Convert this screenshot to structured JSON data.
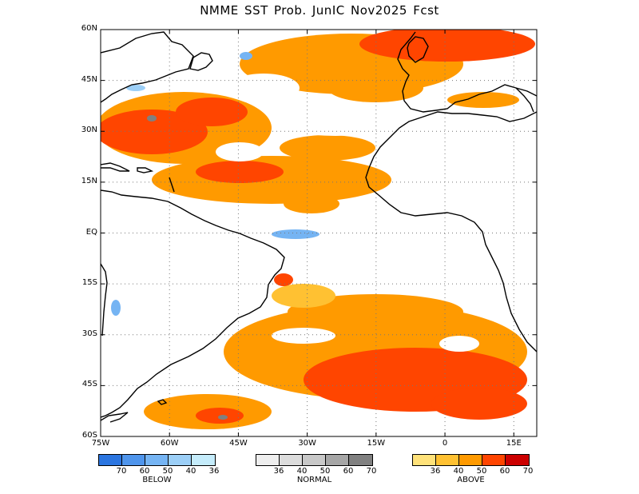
{
  "title": "NMME  SST  Prob.  JunIC    Nov2025  Fcst",
  "map": {
    "lat_labels": [
      "60N",
      "45N",
      "30N",
      "15N",
      "EQ",
      "15S",
      "30S",
      "45S",
      "60S"
    ],
    "lon_labels": [
      "75W",
      "60W",
      "45W",
      "30W",
      "15W",
      "0",
      "15E"
    ],
    "lat_range": [
      -60,
      60
    ],
    "lon_range": [
      -75,
      20
    ],
    "grid": "dotted",
    "land_color": "#ffffff"
  },
  "legend": {
    "below": {
      "label": "BELOW",
      "ticks": [
        "70",
        "60",
        "50",
        "40",
        "36"
      ],
      "colors": [
        "#2b75e0",
        "#4f95ec",
        "#75b4f3",
        "#9ccff7",
        "#c5ecfb"
      ]
    },
    "normal": {
      "label": "NORMAL",
      "ticks": [
        "36",
        "40",
        "50",
        "60",
        "70"
      ],
      "colors": [
        "#eeeeee",
        "#dcdcdc",
        "#c8c8c8",
        "#a6a6a6",
        "#808080"
      ]
    },
    "above": {
      "label": "ABOVE",
      "ticks": [
        "36",
        "40",
        "50",
        "60",
        "70"
      ],
      "colors": [
        "#ffe27a",
        "#ffc132",
        "#ff9a00",
        "#ff4500",
        "#cc0000"
      ]
    }
  }
}
